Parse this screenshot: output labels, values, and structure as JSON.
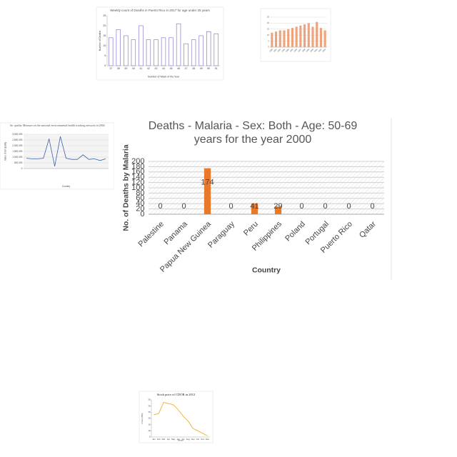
{
  "chart_data": [
    {
      "type": "bar",
      "title": "Weekly count of Deaths in Puerto Rico in 2017 for age under 25 years",
      "x_label": "Number of Week of the Year",
      "y_label": "Number of Deaths",
      "categories": [
        "37",
        "38",
        "39",
        "40",
        "41",
        "42",
        "43",
        "44",
        "45",
        "46",
        "47",
        "48",
        "49",
        "50",
        "51"
      ],
      "values": [
        14,
        18,
        15,
        13,
        20,
        13,
        13,
        14,
        14,
        21,
        11,
        13,
        15,
        17,
        16
      ],
      "color": "#7b68c8",
      "bar_style": "outline",
      "ylim": [
        0,
        25
      ],
      "yticks": [
        0,
        5,
        10,
        15,
        20,
        25
      ],
      "grid": false
    },
    {
      "type": "bar",
      "categories": [
        "1990",
        "1991",
        "1992",
        "1993",
        "1994",
        "1995",
        "1996",
        "1997",
        "1998",
        "1999",
        "2000",
        "2001",
        "2002",
        "2003"
      ],
      "values": [
        12,
        13,
        14,
        14,
        15,
        16,
        17,
        18,
        19,
        20,
        17,
        21,
        16,
        14
      ],
      "color": "#f0a37a",
      "bar_style": "fill",
      "ylim": [
        0,
        25
      ],
      "yticks": [
        0,
        5,
        10,
        15,
        20,
        25
      ],
      "grid": true
    },
    {
      "type": "line",
      "title": "Air quality Measure on the national environmental health tracking network in 2004",
      "x_label": "Country",
      "y_label": "Value of air quality",
      "categories": [
        null,
        null,
        null,
        null,
        null,
        null,
        null,
        null,
        null,
        null,
        null,
        null,
        null,
        null,
        null
      ],
      "values": [
        900000,
        850000,
        850000,
        900000,
        2600000,
        200000,
        2800000,
        900000,
        800000,
        800000,
        1200000,
        800000,
        850000,
        700000,
        850000
      ],
      "color": "#3a5fa8",
      "ylim": [
        0,
        3000000
      ],
      "yticks": [
        0,
        {
          "value": 500000,
          "label": "500,000"
        },
        {
          "value": 1000000,
          "label": "1,000,000"
        },
        {
          "value": 1500000,
          "label": "1,500,000"
        },
        {
          "value": 2000000,
          "label": "2,000,000"
        },
        {
          "value": 2500000,
          "label": "2,500,000"
        },
        {
          "value": 3000000,
          "label": "3,000,000"
        }
      ],
      "grid": true
    },
    {
      "type": "bar",
      "title": "Deaths - Malaria - Sex: Both - Age: 50-69 years for the year 2000",
      "x_label": "Country",
      "y_label": "No. of Deaths by Malaria",
      "categories": [
        "Palestine",
        "Panama",
        "Papua New Guinea",
        "Paraguay",
        "Peru",
        "Philippines",
        "Poland",
        "Portugal",
        "Puerto Rico",
        "Qatar"
      ],
      "values": [
        0,
        0,
        174,
        0,
        41,
        29,
        0,
        0,
        0,
        0
      ],
      "color": "#e8782a",
      "bar_style": "fill",
      "data_labels": true,
      "ylim": [
        0,
        200
      ],
      "yticks": [
        0,
        20,
        40,
        60,
        80,
        100,
        120,
        140,
        160,
        180,
        200
      ],
      "grid": true
    },
    {
      "type": "line",
      "title": "Stock price of CDOR in 2012",
      "x_label": "Month",
      "y_label": "Price (USD)",
      "categories": [
        "Jan",
        "Feb",
        "Mar",
        "Apr",
        "May",
        "Jun",
        "Jul",
        "Aug",
        "Sep",
        "Oct",
        "Nov",
        "Dec"
      ],
      "values": [
        23,
        24,
        33,
        32,
        31,
        27,
        22,
        18,
        12,
        10,
        8,
        6
      ],
      "color": "#f0b030",
      "ylim": [
        5,
        35
      ],
      "yticks": [
        5,
        10,
        15,
        20,
        25,
        30,
        35
      ],
      "grid": false
    }
  ]
}
